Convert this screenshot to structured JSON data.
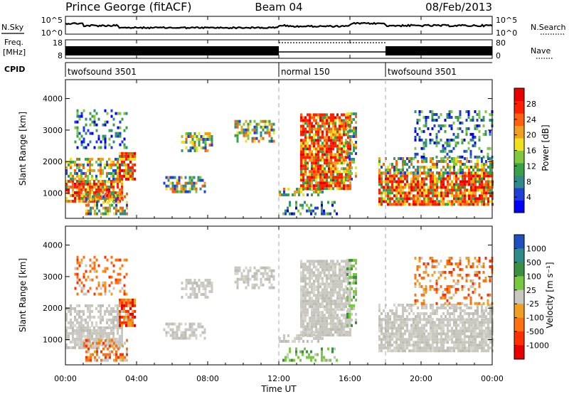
{
  "chart_data": {
    "type": "heatmap",
    "header": {
      "station": "Prince George (fitACF)",
      "beam": "Beam 04",
      "date": "08/Feb/2013"
    },
    "time_axis": {
      "title": "Time UT",
      "range_hours": [
        0,
        24
      ],
      "tick_labels": [
        "00:00",
        "04:00",
        "08:00",
        "12:00",
        "16:00",
        "20:00",
        "00:00"
      ],
      "mode_change_hours": [
        12,
        18
      ]
    },
    "noise_panel": {
      "left_label": "N.Sky",
      "right_label": "N.Search",
      "left_ticks": [
        "10^5",
        "10^0"
      ],
      "right_ticks": [
        "10^5",
        "10^0"
      ]
    },
    "freq_panel": {
      "left_label_line1": "Freq.",
      "left_label_line2": "[MHz]",
      "left_ticks": [
        "18",
        "8"
      ],
      "right_label": "Nave",
      "right_ticks": [
        "80",
        "0"
      ]
    },
    "cpid": {
      "label": "CPID",
      "segments": [
        {
          "start_hour": 0,
          "text": "twofsound 3501"
        },
        {
          "start_hour": 12,
          "text": "normal 150"
        },
        {
          "start_hour": 18,
          "text": "twofsound 3501"
        }
      ]
    },
    "power_panel": {
      "ylabel": "Slant Range [km]",
      "yticks": [
        1000,
        2000,
        3000,
        4000
      ],
      "ylim": [
        200,
        4600
      ],
      "colorbar_label": "Power [dB]",
      "colorbar_ticks": [
        "4",
        "8",
        "12",
        "16",
        "20",
        "24",
        "28"
      ],
      "colorbar_colors": [
        "#0000ff",
        "#1f3fd8",
        "#2f8a8a",
        "#3aa04a",
        "#80c840",
        "#f0e020",
        "#f0a020",
        "#ff6010",
        "#ff2000",
        "#e80000"
      ]
    },
    "velocity_panel": {
      "ylabel": "Slant Range [km]",
      "yticks": [
        1000,
        2000,
        3000,
        4000
      ],
      "ylim": [
        200,
        4600
      ],
      "colorbar_label": "Velocity [m s⁻¹]",
      "colorbar_ticks": [
        "1000",
        "500",
        "100",
        "25",
        "-25",
        "-100",
        "-500",
        "-1000"
      ],
      "colorbar_colors": [
        "#1f4fc0",
        "#2f8a8a",
        "#3a9040",
        "#78c840",
        "#c8c8c0",
        "#f0a020",
        "#ff7010",
        "#ff3000",
        "#e80000"
      ]
    },
    "scatter_regions": [
      {
        "t0": 0.0,
        "t1": 3.2,
        "r0": 700,
        "r1": 1400,
        "power": "strong",
        "velocity": "gray"
      },
      {
        "t0": 0.0,
        "t1": 3.8,
        "r0": 1400,
        "r1": 2100,
        "power": "medium",
        "velocity": "gray"
      },
      {
        "t0": 0.5,
        "t1": 3.5,
        "r0": 2400,
        "r1": 3600,
        "power": "weak",
        "velocity": "orange"
      },
      {
        "t0": 3.0,
        "t1": 3.9,
        "r0": 1400,
        "r1": 2300,
        "power": "strong",
        "velocity": "red"
      },
      {
        "t0": 1.0,
        "t1": 3.5,
        "r0": 300,
        "r1": 1000,
        "power": "medium",
        "velocity": "orange"
      },
      {
        "t0": 6.5,
        "t1": 8.3,
        "r0": 2300,
        "r1": 2900,
        "power": "medium",
        "velocity": "gray"
      },
      {
        "t0": 5.5,
        "t1": 7.8,
        "r0": 1000,
        "r1": 1500,
        "power": "medium",
        "velocity": "gray"
      },
      {
        "t0": 9.5,
        "t1": 11.7,
        "r0": 2600,
        "r1": 3300,
        "power": "medium",
        "velocity": "gray"
      },
      {
        "t0": 12.0,
        "t1": 14.5,
        "r0": 900,
        "r1": 1100,
        "power": "medium",
        "velocity": "gray"
      },
      {
        "t0": 12.2,
        "t1": 15.3,
        "r0": 300,
        "r1": 700,
        "power": "weak",
        "velocity": "green"
      },
      {
        "t0": 13.2,
        "t1": 16.0,
        "r0": 1100,
        "r1": 3500,
        "power": "strong",
        "velocity": "gray"
      },
      {
        "t0": 15.8,
        "t1": 16.4,
        "r0": 1400,
        "r1": 3500,
        "power": "medium",
        "velocity": "green"
      },
      {
        "t0": 17.6,
        "t1": 24.0,
        "r0": 600,
        "r1": 1600,
        "power": "strong",
        "velocity": "gray"
      },
      {
        "t0": 17.6,
        "t1": 24.0,
        "r0": 1600,
        "r1": 2100,
        "power": "medium",
        "velocity": "gray"
      },
      {
        "t0": 19.5,
        "t1": 24.0,
        "r0": 2100,
        "r1": 3600,
        "power": "weak",
        "velocity": "orange"
      }
    ]
  }
}
